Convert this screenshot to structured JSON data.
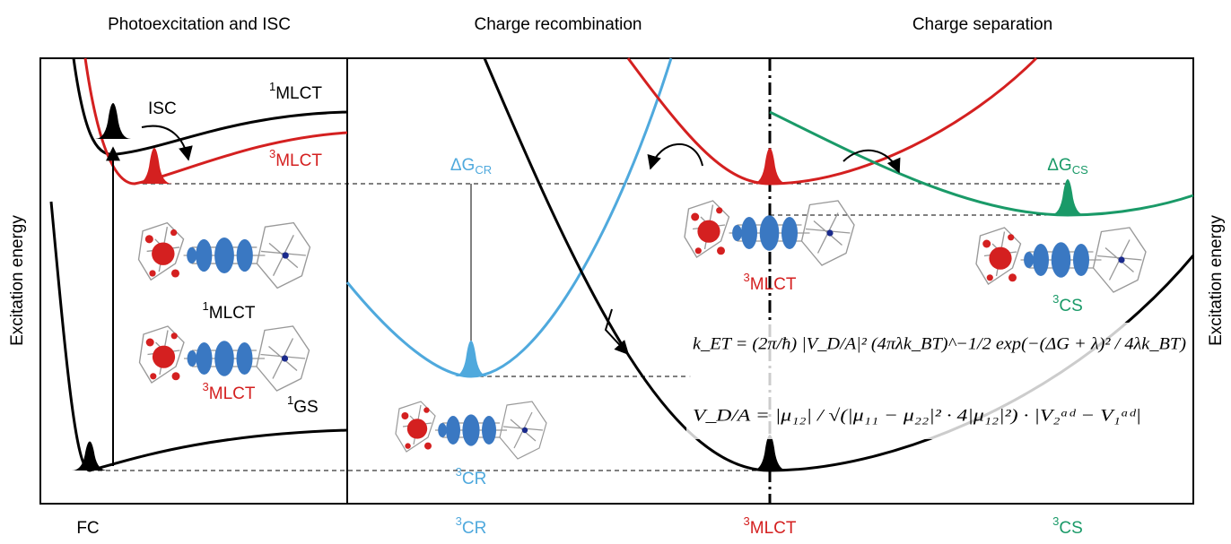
{
  "headers": [
    "Photoexcitation and ISC",
    "Charge recombination",
    "Charge separation"
  ],
  "axis_label": "Excitation energy",
  "panel_labels": {
    "singlet_mlct": {
      "sup": "1",
      "text": "MLCT"
    },
    "triplet_mlct": {
      "sup": "3",
      "text": "MLCT"
    },
    "ground_state": {
      "sup": "1",
      "text": "GS"
    },
    "isc": "ISC",
    "mol_singlet_mlct": {
      "sup": "1",
      "text": "MLCT"
    },
    "mol_triplet_mlct": {
      "sup": "3",
      "text": "MLCT"
    },
    "delta_g_cr": {
      "text": "ΔG",
      "sub": "CR"
    },
    "mol_cr": {
      "sup": "3",
      "text": "CR"
    },
    "mol_mlct": {
      "sup": "3",
      "text": "MLCT"
    },
    "mol_cs": {
      "sup": "3",
      "text": "CS"
    },
    "delta_g_cs": {
      "text": "ΔG",
      "sub": "CS"
    }
  },
  "x_labels": [
    {
      "text": "FC"
    },
    {
      "sup": "3",
      "text": "CR"
    },
    {
      "sup": "3",
      "text": "MLCT"
    },
    {
      "sup": "3",
      "text": "CS"
    }
  ],
  "equations": [
    "k_ET = (2π/ħ) |V_D/A|² (4πλk_BT)^−1/2 exp(−(ΔG + λ)² / 4λk_BT)",
    "V_D/A = |μ₁₂| / √(|μ₁₁ − μ₂₂|² · 4|μ₁₂|²) · |V₂ᵃᵈ − V₁ᵃᵈ|"
  ]
}
